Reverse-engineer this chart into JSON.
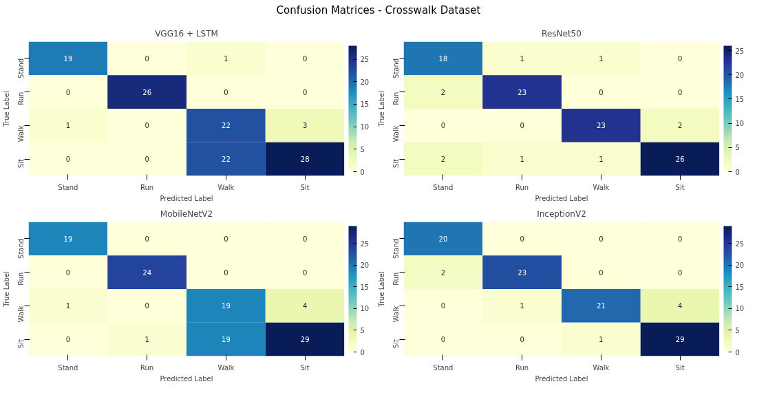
{
  "chart_data": [
    {
      "type": "heatmap",
      "title": "VGG16 + LSTM",
      "xlabel": "Predicted Label",
      "ylabel": "True Label",
      "annotations": [
        "Confusion Matrices - Crosswalk Dataset"
      ],
      "categories": [
        "Stand",
        "Run",
        "Walk",
        "Sit"
      ],
      "y_categories": [
        "Stand",
        "Run",
        "Walk",
        "Sit"
      ],
      "cells": [
        [
          19,
          0,
          1,
          0
        ],
        [
          0,
          26,
          0,
          0
        ],
        [
          1,
          0,
          22,
          3
        ],
        [
          0,
          0,
          22,
          28
        ]
      ],
      "clim": [
        0,
        28
      ],
      "cticks": [
        0,
        5,
        10,
        15,
        20,
        25
      ],
      "data_labels": true
    },
    {
      "type": "heatmap",
      "title": "ResNet50",
      "xlabel": "Predicted Label",
      "ylabel": "True Label",
      "categories": [
        "Stand",
        "Run",
        "Walk",
        "Sit"
      ],
      "y_categories": [
        "Stand",
        "Run",
        "Walk",
        "Sit"
      ],
      "cells": [
        [
          18,
          1,
          1,
          0
        ],
        [
          2,
          23,
          0,
          0
        ],
        [
          0,
          0,
          23,
          2
        ],
        [
          2,
          1,
          1,
          26
        ]
      ],
      "clim": [
        0,
        26
      ],
      "cticks": [
        0,
        5,
        10,
        15,
        20,
        25
      ],
      "data_labels": true
    },
    {
      "type": "heatmap",
      "title": "MobileNetV2",
      "xlabel": "Predicted Label",
      "ylabel": "True Label",
      "categories": [
        "Stand",
        "Run",
        "Walk",
        "Sit"
      ],
      "y_categories": [
        "Stand",
        "Run",
        "Walk",
        "Sit"
      ],
      "cells": [
        [
          19,
          0,
          0,
          0
        ],
        [
          0,
          24,
          0,
          0
        ],
        [
          1,
          0,
          19,
          4
        ],
        [
          0,
          1,
          19,
          29
        ]
      ],
      "clim": [
        0,
        29
      ],
      "cticks": [
        0,
        5,
        10,
        15,
        20,
        25
      ],
      "data_labels": true
    },
    {
      "type": "heatmap",
      "title": "InceptionV2",
      "xlabel": "Predicted Label",
      "ylabel": "True Label",
      "categories": [
        "Stand",
        "Run",
        "Walk",
        "Sit"
      ],
      "y_categories": [
        "Stand",
        "Run",
        "Walk",
        "Sit"
      ],
      "cells": [
        [
          20,
          0,
          0,
          0
        ],
        [
          2,
          23,
          0,
          0
        ],
        [
          0,
          1,
          21,
          4
        ],
        [
          0,
          0,
          1,
          29
        ]
      ],
      "clim": [
        0,
        29
      ],
      "cticks": [
        0,
        5,
        10,
        15,
        20,
        25
      ],
      "data_labels": true
    }
  ]
}
